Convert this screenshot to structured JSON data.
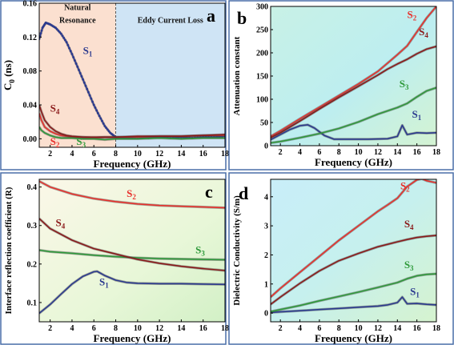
{
  "colors": {
    "s1": "#2b3a8f",
    "s2": "#e8312c",
    "s3": "#2e9a3a",
    "s4": "#8b1a1a",
    "frame": "#4a6fa8",
    "bg_green": "#d9f3c4",
    "bg_cyan": "#b9ecf2",
    "region_orange": "#fbe0d0",
    "region_blue": "#cfe4f5"
  },
  "chart_data": [
    {
      "id": "a",
      "type": "line",
      "panel_label": "a",
      "xlabel": "Frequency (GHz)",
      "ylabel": "C0 (ns)",
      "ylabel_parts": {
        "main": "C",
        "sub": "0",
        "rest": " (ns)"
      },
      "xlim": [
        1,
        18
      ],
      "ylim": [
        -0.01,
        0.16
      ],
      "xticks": [
        "2",
        "4",
        "6",
        "8",
        "10",
        "12",
        "14",
        "16",
        "18"
      ],
      "yticks": [
        "0.00",
        "0.04",
        "0.08",
        "0.12",
        "0.16"
      ],
      "regions": [
        {
          "from": 1,
          "to": 8,
          "color_key": "region_orange"
        },
        {
          "from": 8,
          "to": 18,
          "color_key": "region_blue"
        }
      ],
      "annotations": [
        {
          "text": "Natural",
          "x": 4.5,
          "y": 0.152
        },
        {
          "text": "Resonance",
          "x": 4.5,
          "y": 0.137
        },
        {
          "text": "Eddy Current Loss",
          "x": 13.0,
          "y": 0.137
        }
      ],
      "series": [
        {
          "name": "S1",
          "color_key": "s1",
          "marker": true,
          "x": [
            1.0,
            1.3,
            1.6,
            2.0,
            2.5,
            3.0,
            3.5,
            4.0,
            4.5,
            5.0,
            5.5,
            6.0,
            6.5,
            7.0,
            7.5,
            8.0,
            9,
            10,
            11,
            12,
            13,
            14,
            15,
            16,
            17,
            18
          ],
          "y": [
            0.118,
            0.131,
            0.137,
            0.135,
            0.131,
            0.124,
            0.114,
            0.1,
            0.085,
            0.07,
            0.055,
            0.04,
            0.027,
            0.015,
            0.007,
            0.002,
            0.001,
            0.002,
            0.001,
            0.002,
            0.001,
            0.002,
            0.001,
            0.002,
            0.002,
            0.003
          ]
        },
        {
          "name": "S2",
          "color_key": "s2",
          "marker": false,
          "x": [
            1.0,
            1.2,
            1.5,
            2.0,
            2.5,
            3.0,
            3.5,
            4.0,
            5,
            6,
            7,
            8,
            10,
            12,
            14,
            16,
            18
          ],
          "y": [
            0.03,
            0.022,
            0.014,
            0.009,
            0.006,
            0.004,
            0.003,
            0.002,
            0.002,
            0.001,
            0.002,
            0.002,
            0.002,
            0.003,
            0.003,
            0.004,
            0.004
          ]
        },
        {
          "name": "S3",
          "color_key": "s3",
          "marker": false,
          "x": [
            1.0,
            1.2,
            1.5,
            2.0,
            2.5,
            3.0,
            3.5,
            4.0,
            5,
            6,
            7,
            8,
            10,
            12,
            14,
            16,
            18
          ],
          "y": [
            0.014,
            0.01,
            0.007,
            0.004,
            0.002,
            0.001,
            0.001,
            0.001,
            0.0,
            0.0,
            -0.001,
            0.0,
            0.0,
            0.001,
            0.0,
            0.001,
            0.001
          ]
        },
        {
          "name": "S4",
          "color_key": "s4",
          "marker": false,
          "x": [
            1.0,
            1.2,
            1.5,
            2.0,
            2.5,
            3.0,
            3.5,
            4.0,
            5,
            6,
            7,
            8,
            10,
            12,
            14,
            16,
            18
          ],
          "y": [
            0.04,
            0.032,
            0.022,
            0.014,
            0.009,
            0.006,
            0.004,
            0.003,
            0.002,
            0.002,
            0.002,
            0.002,
            0.003,
            0.003,
            0.003,
            0.004,
            0.005
          ]
        }
      ],
      "series_labels": [
        {
          "name": "S1",
          "base": "S",
          "sub": "1",
          "color_key": "s1",
          "x": 5.0,
          "y": 0.1
        },
        {
          "name": "S4",
          "base": "S",
          "sub": "4",
          "color_key": "s4",
          "x": 2.0,
          "y": 0.032
        },
        {
          "name": "S2",
          "base": "S",
          "sub": "2",
          "color_key": "s2",
          "x": 2.0,
          "y": -0.007
        },
        {
          "name": "S3",
          "base": "S",
          "sub": "3",
          "color_key": "s3",
          "x": 4.4,
          "y": -0.007
        }
      ]
    },
    {
      "id": "b",
      "type": "line",
      "panel_label": "b",
      "xlabel": "Frequency (GHz)",
      "ylabel": "Attenuation constant",
      "xlim": [
        1,
        18
      ],
      "ylim": [
        0,
        300
      ],
      "xticks": [
        "2",
        "4",
        "6",
        "8",
        "10",
        "12",
        "14",
        "16",
        "18"
      ],
      "yticks": [
        "0",
        "50",
        "100",
        "150",
        "200",
        "250",
        "300"
      ],
      "series": [
        {
          "name": "S1",
          "color_key": "s1",
          "x": [
            1,
            2,
            3,
            4,
            4.8,
            5.5,
            6.5,
            7.5,
            9,
            11,
            13,
            14,
            14.5,
            15,
            16,
            17,
            18
          ],
          "y": [
            13,
            24,
            35,
            43,
            45,
            38,
            22,
            14,
            14,
            14,
            15,
            20,
            44,
            24,
            28,
            27,
            28
          ]
        },
        {
          "name": "S2",
          "color_key": "s2",
          "x": [
            1,
            2,
            4,
            6,
            8,
            10,
            12,
            13,
            14,
            15,
            16,
            17,
            18
          ],
          "y": [
            20,
            32,
            58,
            83,
            108,
            133,
            160,
            178,
            196,
            215,
            245,
            275,
            300
          ]
        },
        {
          "name": "S3",
          "color_key": "s3",
          "x": [
            1,
            2,
            4,
            6,
            8,
            10,
            12,
            14,
            15,
            16,
            17,
            18
          ],
          "y": [
            6,
            9,
            17,
            26,
            37,
            51,
            68,
            82,
            91,
            105,
            118,
            125
          ]
        },
        {
          "name": "S4",
          "color_key": "s4",
          "x": [
            1,
            2,
            4,
            6,
            8,
            10,
            12,
            13,
            14,
            15,
            16,
            17,
            18
          ],
          "y": [
            17,
            28,
            53,
            79,
            104,
            128,
            152,
            165,
            176,
            186,
            198,
            208,
            214
          ]
        }
      ],
      "series_labels": [
        {
          "name": "S2",
          "base": "S",
          "sub": "2",
          "color_key": "s2",
          "x": 15.0,
          "y": 275
        },
        {
          "name": "S4",
          "base": "S",
          "sub": "4",
          "color_key": "s4",
          "x": 16.2,
          "y": 238
        },
        {
          "name": "S3",
          "base": "S",
          "sub": "3",
          "color_key": "s3",
          "x": 14.2,
          "y": 126
        },
        {
          "name": "S1",
          "base": "S",
          "sub": "1",
          "color_key": "s1",
          "x": 15.5,
          "y": 60
        }
      ]
    },
    {
      "id": "c",
      "type": "line",
      "panel_label": "c",
      "xlabel": "Frequency (GHz)",
      "ylabel": "Interface reflection coefficient (R)",
      "xlim": [
        1,
        18
      ],
      "ylim": [
        0.05,
        0.42
      ],
      "xticks": [
        "2",
        "4",
        "6",
        "8",
        "10",
        "12",
        "14",
        "16",
        "18"
      ],
      "yticks": [
        "0.1",
        "0.2",
        "0.3",
        "0.4"
      ],
      "series": [
        {
          "name": "S1",
          "color_key": "s1",
          "x": [
            1,
            2,
            3,
            4,
            5,
            6,
            6.3,
            7,
            8,
            9,
            10,
            12,
            14,
            16,
            18
          ],
          "y": [
            0.072,
            0.095,
            0.122,
            0.148,
            0.168,
            0.18,
            0.181,
            0.17,
            0.158,
            0.152,
            0.15,
            0.149,
            0.149,
            0.148,
            0.147
          ]
        },
        {
          "name": "S2",
          "color_key": "s2",
          "x": [
            1,
            2,
            4,
            6,
            8,
            10,
            12,
            14,
            16,
            18
          ],
          "y": [
            0.415,
            0.4,
            0.382,
            0.37,
            0.362,
            0.356,
            0.352,
            0.35,
            0.348,
            0.346
          ]
        },
        {
          "name": "S3",
          "color_key": "s3",
          "x": [
            1,
            2,
            4,
            6,
            8,
            10,
            12,
            14,
            16,
            18
          ],
          "y": [
            0.236,
            0.232,
            0.228,
            0.223,
            0.219,
            0.216,
            0.214,
            0.213,
            0.212,
            0.211
          ]
        },
        {
          "name": "S4",
          "color_key": "s4",
          "x": [
            1,
            2,
            4,
            6,
            8,
            10,
            12,
            14,
            16,
            18
          ],
          "y": [
            0.318,
            0.292,
            0.262,
            0.24,
            0.226,
            0.212,
            0.202,
            0.194,
            0.188,
            0.183
          ]
        }
      ],
      "series_labels": [
        {
          "name": "S2",
          "base": "S",
          "sub": "2",
          "color_key": "s2",
          "x": 9.0,
          "y": 0.374
        },
        {
          "name": "S4",
          "base": "S",
          "sub": "4",
          "color_key": "s4",
          "x": 2.5,
          "y": 0.298
        },
        {
          "name": "S3",
          "base": "S",
          "sub": "3",
          "color_key": "s3",
          "x": 15.3,
          "y": 0.228
        },
        {
          "name": "S1",
          "base": "S",
          "sub": "1",
          "color_key": "s1",
          "x": 6.5,
          "y": 0.145
        }
      ]
    },
    {
      "id": "d",
      "type": "line",
      "panel_label": "d",
      "xlabel": "Frequency (GHz)",
      "ylabel": "Dielectric Conductivity (S/m)",
      "xlim": [
        1,
        18
      ],
      "ylim": [
        -0.3,
        4.6
      ],
      "xticks": [
        "2",
        "4",
        "6",
        "8",
        "10",
        "12",
        "14",
        "16",
        "18"
      ],
      "yticks": [
        "0",
        "1",
        "2",
        "3",
        "4"
      ],
      "series": [
        {
          "name": "S1",
          "color_key": "s1",
          "x": [
            1,
            2,
            4,
            6,
            8,
            10,
            12,
            13,
            14,
            14.5,
            15,
            16,
            17,
            18
          ],
          "y": [
            0.02,
            0.04,
            0.08,
            0.12,
            0.16,
            0.2,
            0.24,
            0.28,
            0.36,
            0.55,
            0.32,
            0.33,
            0.3,
            0.28
          ]
        },
        {
          "name": "S2",
          "color_key": "s2",
          "x": [
            1,
            2,
            4,
            6,
            8,
            10,
            12,
            13,
            14,
            15,
            16,
            16.5,
            17,
            18
          ],
          "y": [
            0.55,
            0.85,
            1.4,
            1.95,
            2.5,
            3.0,
            3.5,
            3.72,
            3.95,
            4.35,
            4.58,
            4.62,
            4.55,
            4.48
          ]
        },
        {
          "name": "S3",
          "color_key": "s3",
          "x": [
            1,
            2,
            4,
            6,
            8,
            10,
            12,
            14,
            15,
            16,
            17,
            18
          ],
          "y": [
            0.05,
            0.12,
            0.26,
            0.42,
            0.57,
            0.72,
            0.88,
            1.05,
            1.18,
            1.28,
            1.33,
            1.35
          ]
        },
        {
          "name": "S4",
          "color_key": "s4",
          "x": [
            1,
            2,
            4,
            6,
            8,
            10,
            12,
            14,
            15,
            16,
            17,
            18
          ],
          "y": [
            0.3,
            0.55,
            1.02,
            1.45,
            1.8,
            2.05,
            2.28,
            2.45,
            2.53,
            2.6,
            2.64,
            2.67
          ]
        }
      ],
      "series_labels": [
        {
          "name": "S2",
          "base": "S",
          "sub": "2",
          "color_key": "s2",
          "x": 14.3,
          "y": 4.25
        },
        {
          "name": "S4",
          "base": "S",
          "sub": "4",
          "color_key": "s4",
          "x": 14.7,
          "y": 2.95
        },
        {
          "name": "S3",
          "base": "S",
          "sub": "3",
          "color_key": "s3",
          "x": 14.7,
          "y": 1.55
        },
        {
          "name": "S1",
          "base": "S",
          "sub": "1",
          "color_key": "s1",
          "x": 15.3,
          "y": 0.62
        }
      ]
    }
  ]
}
